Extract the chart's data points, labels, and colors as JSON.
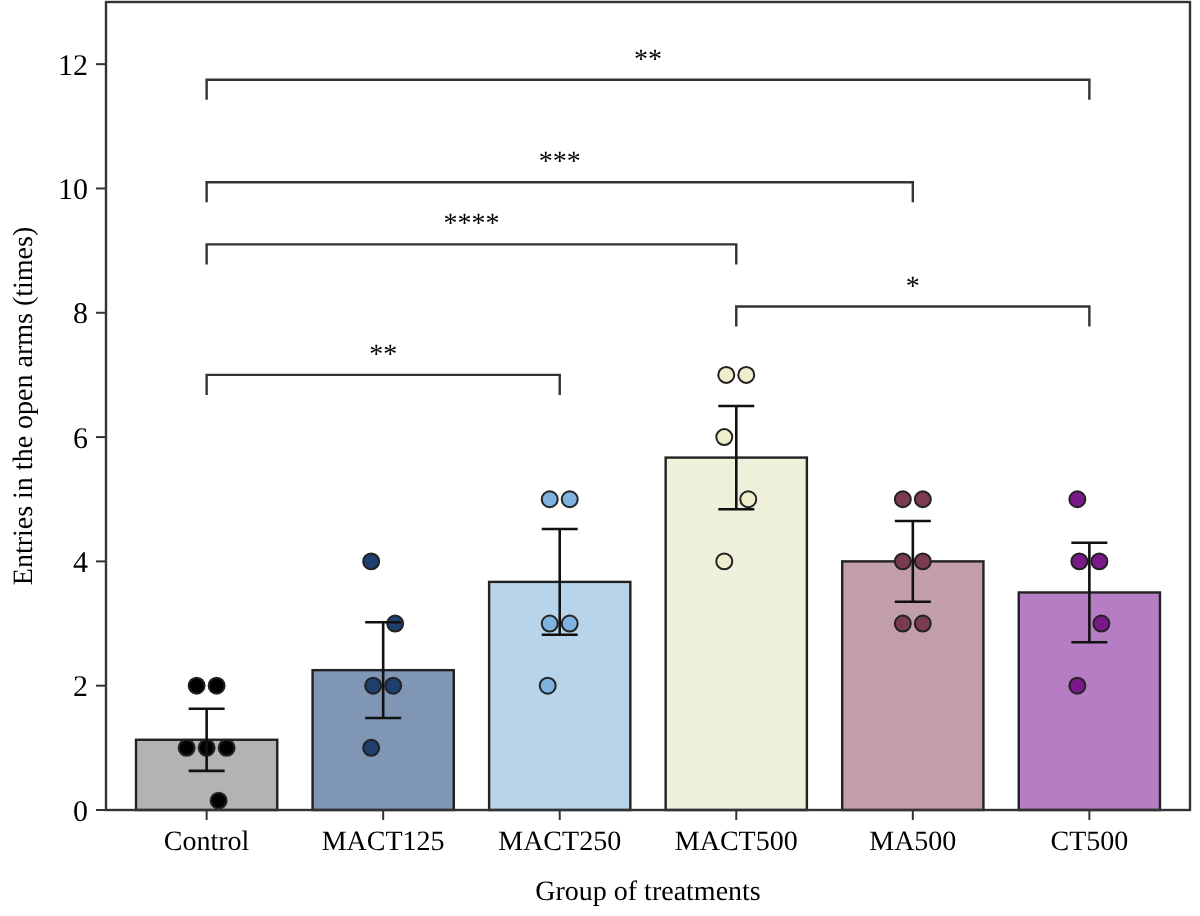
{
  "chart_data": {
    "type": "bar",
    "xlabel": "Group of treatments",
    "ylabel": "Entries in the open arms (times)",
    "categories": [
      "Control",
      "MACT125",
      "MACT250",
      "MACT500",
      "MA500",
      "CT500"
    ],
    "ylim": [
      0,
      13
    ],
    "yticks": [
      0,
      2,
      4,
      6,
      8,
      10,
      12
    ],
    "grid": false,
    "series": [
      {
        "colors": [
          "#b3b3b3",
          "#7f96b5",
          "#b8d4ea",
          "#eef0dc",
          "#c29fa8",
          "#b67dc4"
        ],
        "values": [
          1.13,
          2.25,
          3.67,
          5.67,
          4.0,
          3.5
        ],
        "errors": [
          0.5,
          0.77,
          0.85,
          0.83,
          0.65,
          0.8
        ]
      },
      {
        "type": "scatter",
        "color": "#000000",
        "x": [
          "Control",
          "Control",
          "Control",
          "Control",
          "Control",
          "Control"
        ],
        "values": [
          2,
          2,
          1,
          1,
          1,
          0.15
        ]
      },
      {
        "type": "scatter",
        "color": "#1f3f6e",
        "x": [
          "MACT125",
          "MACT125",
          "MACT125",
          "MACT125",
          "MACT125"
        ],
        "values": [
          4,
          3,
          2,
          2,
          1
        ]
      },
      {
        "type": "scatter",
        "color": "#7fb2df",
        "x": [
          "MACT250",
          "MACT250",
          "MACT250",
          "MACT250",
          "MACT250"
        ],
        "values": [
          5,
          5,
          3,
          3,
          2
        ]
      },
      {
        "type": "scatter",
        "color": "#eeeecc",
        "x": [
          "MACT500",
          "MACT500",
          "MACT500",
          "MACT500",
          "MACT500"
        ],
        "values": [
          7,
          7,
          6,
          5,
          4
        ]
      },
      {
        "type": "scatter",
        "color": "#7a3a50",
        "x": [
          "MA500",
          "MA500",
          "MA500",
          "MA500",
          "MA500",
          "MA500"
        ],
        "values": [
          5,
          5,
          4,
          4,
          3,
          3
        ]
      },
      {
        "type": "scatter",
        "color": "#7a1a8a",
        "x": [
          "CT500",
          "CT500",
          "CT500",
          "CT500",
          "CT500"
        ],
        "values": [
          5,
          4,
          4,
          3,
          2
        ]
      }
    ],
    "marker": "circle",
    "annotations": [
      "**",
      "***",
      "****",
      "*",
      "**"
    ]
  }
}
